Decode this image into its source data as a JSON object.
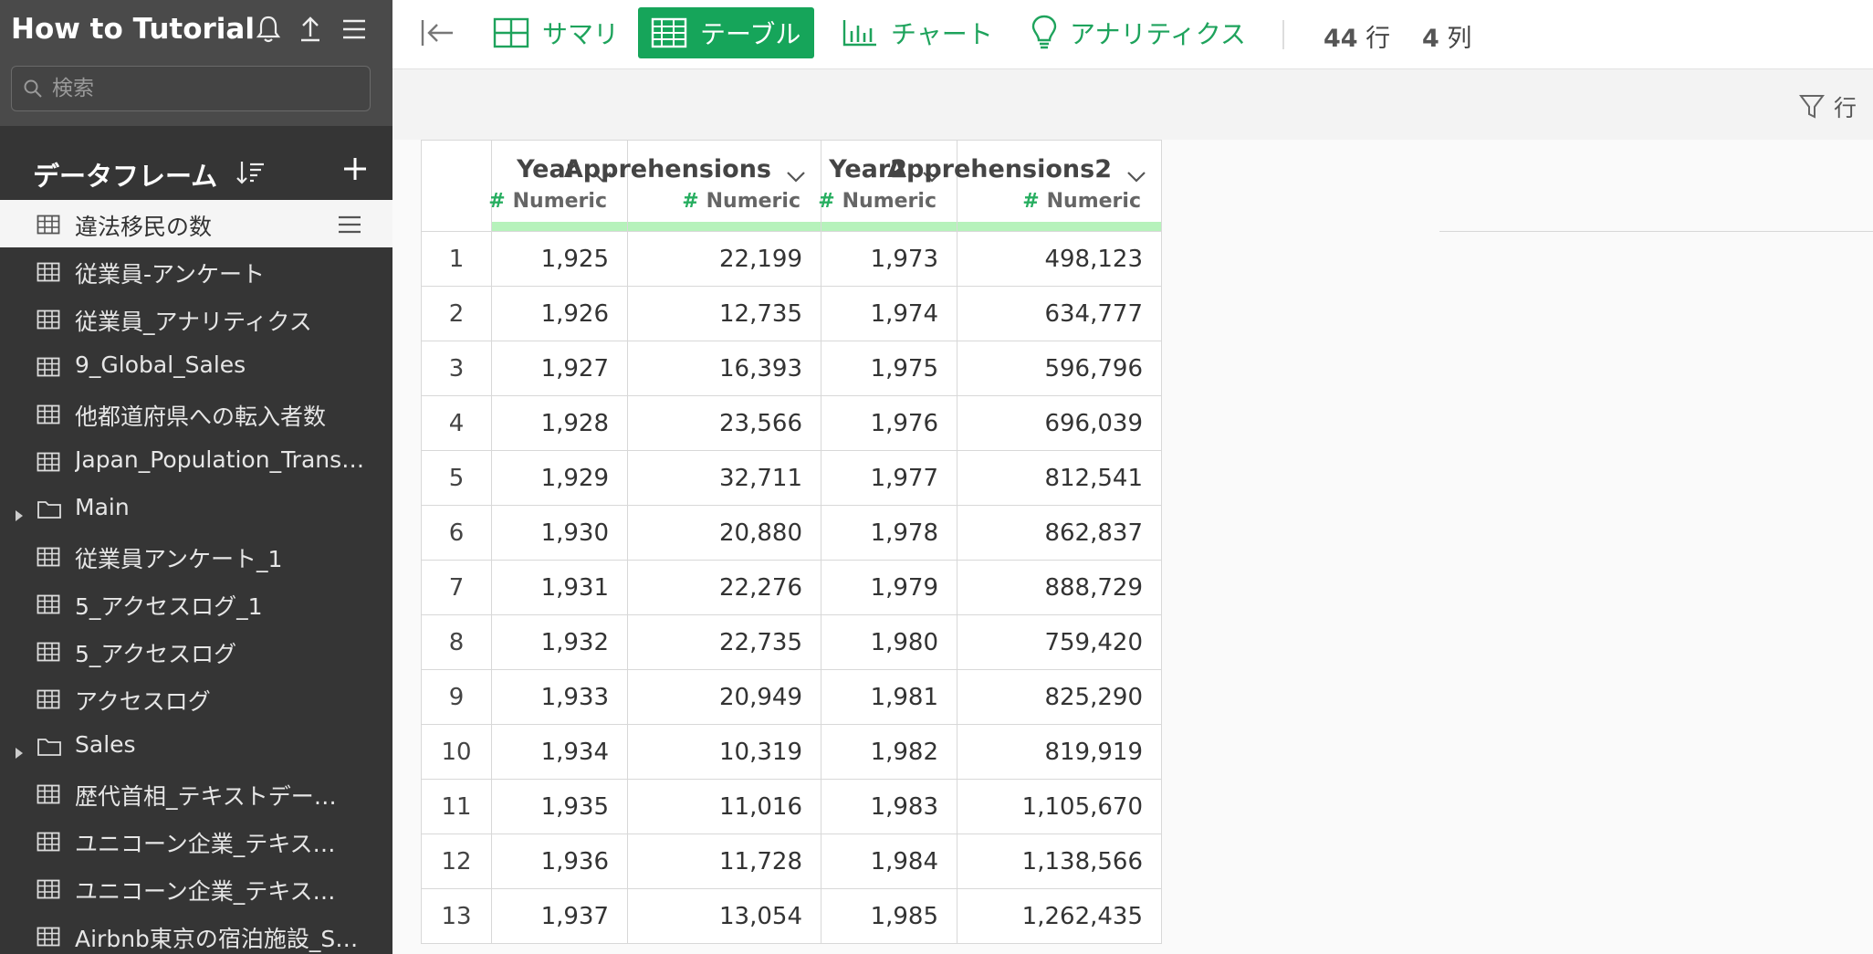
{
  "sidebar": {
    "project_title": "How to Tutorial",
    "search_placeholder": "検索",
    "dataframes_title": "データフレーム",
    "items": [
      {
        "label": "違法移民の数",
        "type": "table",
        "active": true
      },
      {
        "label": "従業員-アンケート",
        "type": "table"
      },
      {
        "label": "従業員_アナリティクス",
        "type": "table"
      },
      {
        "label": "9_Global_Sales",
        "type": "table"
      },
      {
        "label": "他都道府県への転入者数",
        "type": "table"
      },
      {
        "label": "Japan_Population_Transfer",
        "type": "table"
      },
      {
        "label": "Main",
        "type": "folder"
      },
      {
        "label": "従業員アンケート_1",
        "type": "table"
      },
      {
        "label": "5_アクセスログ_1",
        "type": "table"
      },
      {
        "label": "5_アクセスログ",
        "type": "table"
      },
      {
        "label": "アクセスログ",
        "type": "table"
      },
      {
        "label": "Sales",
        "type": "folder"
      },
      {
        "label": "歴代首相_テキストデー…",
        "type": "table"
      },
      {
        "label": "ユニコーン企業_テキス…",
        "type": "table"
      },
      {
        "label": "ユニコーン企業_テキス…",
        "type": "table"
      },
      {
        "label": "Airbnb東京の宿泊施設_S…",
        "type": "table"
      }
    ]
  },
  "toolbar": {
    "tabs": [
      {
        "label": "サマリ",
        "icon": "summary-icon"
      },
      {
        "label": "テーブル",
        "icon": "table-icon",
        "active": true
      },
      {
        "label": "チャート",
        "icon": "chart-icon"
      },
      {
        "label": "アナリティクス",
        "icon": "lightbulb-icon"
      }
    ],
    "rows_count": "44",
    "rows_label": "行",
    "cols_count": "4",
    "cols_label": "列",
    "filter_label": "行"
  },
  "table": {
    "columns": [
      {
        "name": "Year",
        "type": "Numeric"
      },
      {
        "name": "Apprehensions",
        "type": "Numeric"
      },
      {
        "name": "Year2",
        "type": "Numeric"
      },
      {
        "name": "Apprehensions2",
        "type": "Numeric"
      }
    ],
    "rows": [
      [
        "1",
        "1,925",
        "22,199",
        "1,973",
        "498,123"
      ],
      [
        "2",
        "1,926",
        "12,735",
        "1,974",
        "634,777"
      ],
      [
        "3",
        "1,927",
        "16,393",
        "1,975",
        "596,796"
      ],
      [
        "4",
        "1,928",
        "23,566",
        "1,976",
        "696,039"
      ],
      [
        "5",
        "1,929",
        "32,711",
        "1,977",
        "812,541"
      ],
      [
        "6",
        "1,930",
        "20,880",
        "1,978",
        "862,837"
      ],
      [
        "7",
        "1,931",
        "22,276",
        "1,979",
        "888,729"
      ],
      [
        "8",
        "1,932",
        "22,735",
        "1,980",
        "759,420"
      ],
      [
        "9",
        "1,933",
        "20,949",
        "1,981",
        "825,290"
      ],
      [
        "10",
        "1,934",
        "10,319",
        "1,982",
        "819,919"
      ],
      [
        "11",
        "1,935",
        "11,016",
        "1,983",
        "1,105,670"
      ],
      [
        "12",
        "1,936",
        "11,728",
        "1,984",
        "1,138,566"
      ],
      [
        "13",
        "1,937",
        "13,054",
        "1,985",
        "1,262,435"
      ]
    ]
  },
  "colors": {
    "accent": "#16a55a",
    "sidebar_bg": "#353535",
    "header_bar": "#b6f2bb"
  }
}
